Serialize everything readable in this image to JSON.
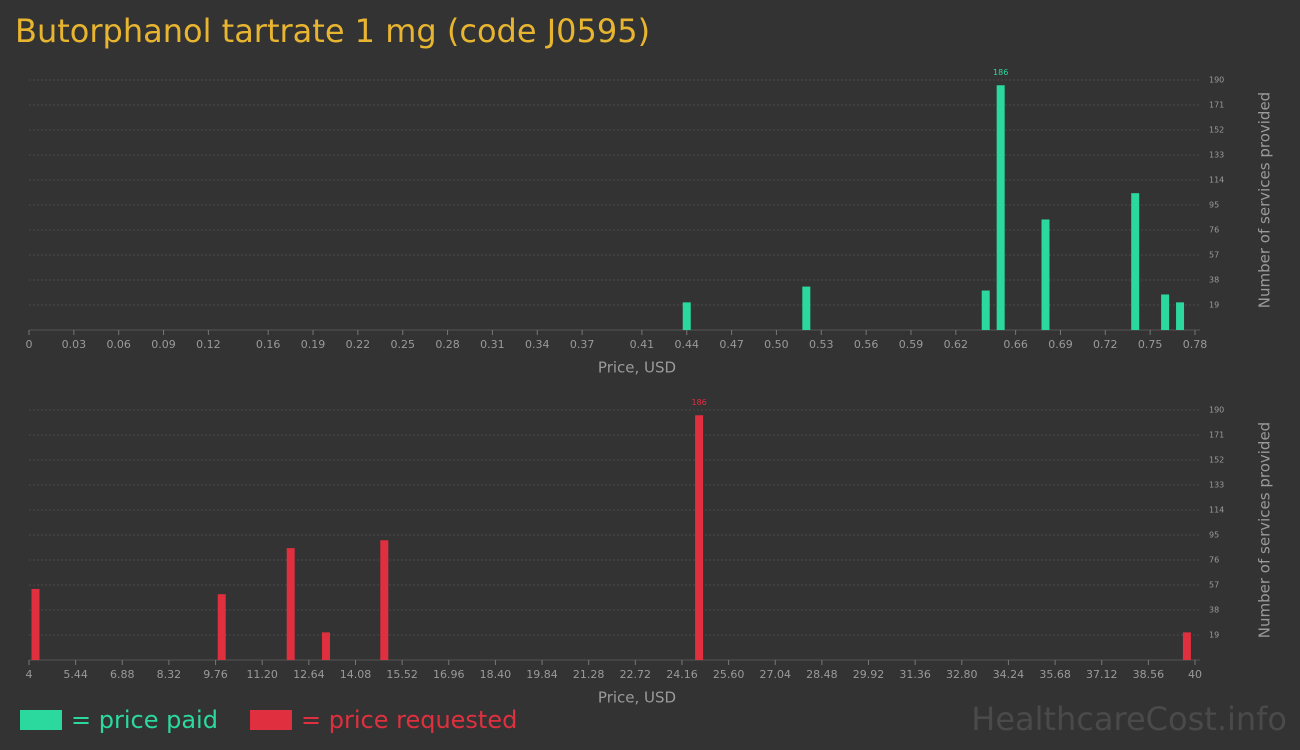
{
  "title": "Butorphanol tartrate 1 mg (code J0595)",
  "watermark": "HealthcareCost.info",
  "chart_data": [
    {
      "type": "bar",
      "x_label": "Price, USD",
      "y_label": "Number of services provided",
      "xlim": [
        0,
        0.78
      ],
      "xticks": [
        0,
        0.03,
        0.06,
        0.09,
        0.12,
        0.16,
        0.19,
        0.22,
        0.25,
        0.28,
        0.31,
        0.34,
        0.37,
        0.41,
        0.44,
        0.47,
        {
          "value": 0.5,
          "label": "0.50"
        },
        0.53,
        0.56,
        0.59,
        0.62,
        0.66,
        0.69,
        0.72,
        0.75,
        0.78
      ],
      "ylim": [
        0,
        190
      ],
      "yticks": [
        19,
        38,
        57,
        76,
        95,
        114,
        133,
        152,
        171,
        190
      ],
      "grid": true,
      "x": [
        0.44,
        0.52,
        0.64,
        0.65,
        0.68,
        0.74,
        0.76,
        0.77
      ],
      "series": [
        {
          "name": "= price paid",
          "color": "#2bd99f",
          "values": [
            21,
            33,
            30,
            186,
            84,
            104,
            27,
            21
          ]
        }
      ]
    },
    {
      "type": "bar",
      "x_label": "Price, USD",
      "y_label": "Number of services provided",
      "xlim": [
        4,
        40
      ],
      "xticks": [
        4,
        5.44,
        6.88,
        8.32,
        9.76,
        {
          "value": 11.2,
          "label": "11.20"
        },
        12.64,
        14.08,
        15.52,
        16.96,
        {
          "value": 18.4,
          "label": "18.40"
        },
        19.84,
        21.28,
        22.72,
        24.16,
        {
          "value": 25.6,
          "label": "25.60"
        },
        27.04,
        28.48,
        29.92,
        31.36,
        {
          "value": 32.8,
          "label": "32.80"
        },
        34.24,
        35.68,
        37.12,
        38.56,
        40
      ],
      "ylim": [
        0,
        190
      ],
      "yticks": [
        19,
        38,
        57,
        76,
        95,
        114,
        133,
        152,
        171,
        190
      ],
      "grid": true,
      "x": [
        4.2,
        9.95,
        12.08,
        13.17,
        14.97,
        24.69,
        39.75
      ],
      "series": [
        {
          "name": "= price requested",
          "color": "#e0303f",
          "values": [
            54,
            50,
            85,
            21,
            91,
            186,
            21
          ]
        }
      ]
    }
  ]
}
